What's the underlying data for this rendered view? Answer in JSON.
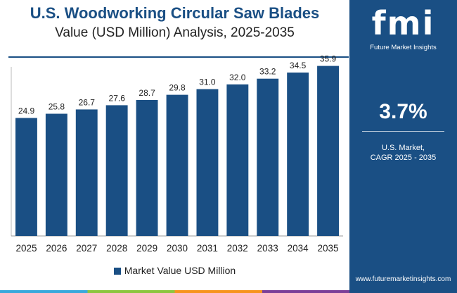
{
  "chart_data": {
    "type": "bar",
    "title": "U.S. Woodworking Circular Saw Blades",
    "subtitle": "Value (USD Million) Analysis, 2025-2035",
    "categories": [
      "2025",
      "2026",
      "2027",
      "2028",
      "2029",
      "2030",
      "2031",
      "2032",
      "2033",
      "2034",
      "2035"
    ],
    "series": [
      {
        "name": "Market Value USD Million",
        "values": [
          24.9,
          25.8,
          26.7,
          27.6,
          28.7,
          29.8,
          31.0,
          32.0,
          33.2,
          34.5,
          35.9
        ],
        "labels": [
          "24.9",
          "25.8",
          "26.7",
          "27.6",
          "28.7",
          "29.8",
          "31.0",
          "32.0",
          "33.2",
          "34.5",
          "35.9"
        ]
      }
    ],
    "ylim": [
      0,
      40
    ],
    "grid": false,
    "legend": "bottom-center"
  },
  "colors": {
    "bar": "#1a4f84",
    "panel": "#1a4f84",
    "title": "#1a4f84"
  },
  "sidebar": {
    "logo_text": "fmi",
    "logo_subtitle": "Future Market Insights",
    "cagr_value": "3.7%",
    "cagr_label_line1": "U.S. Market,",
    "cagr_label_line2": "CAGR 2025 - 2035",
    "url": "www.futuremarketinsights.com"
  }
}
